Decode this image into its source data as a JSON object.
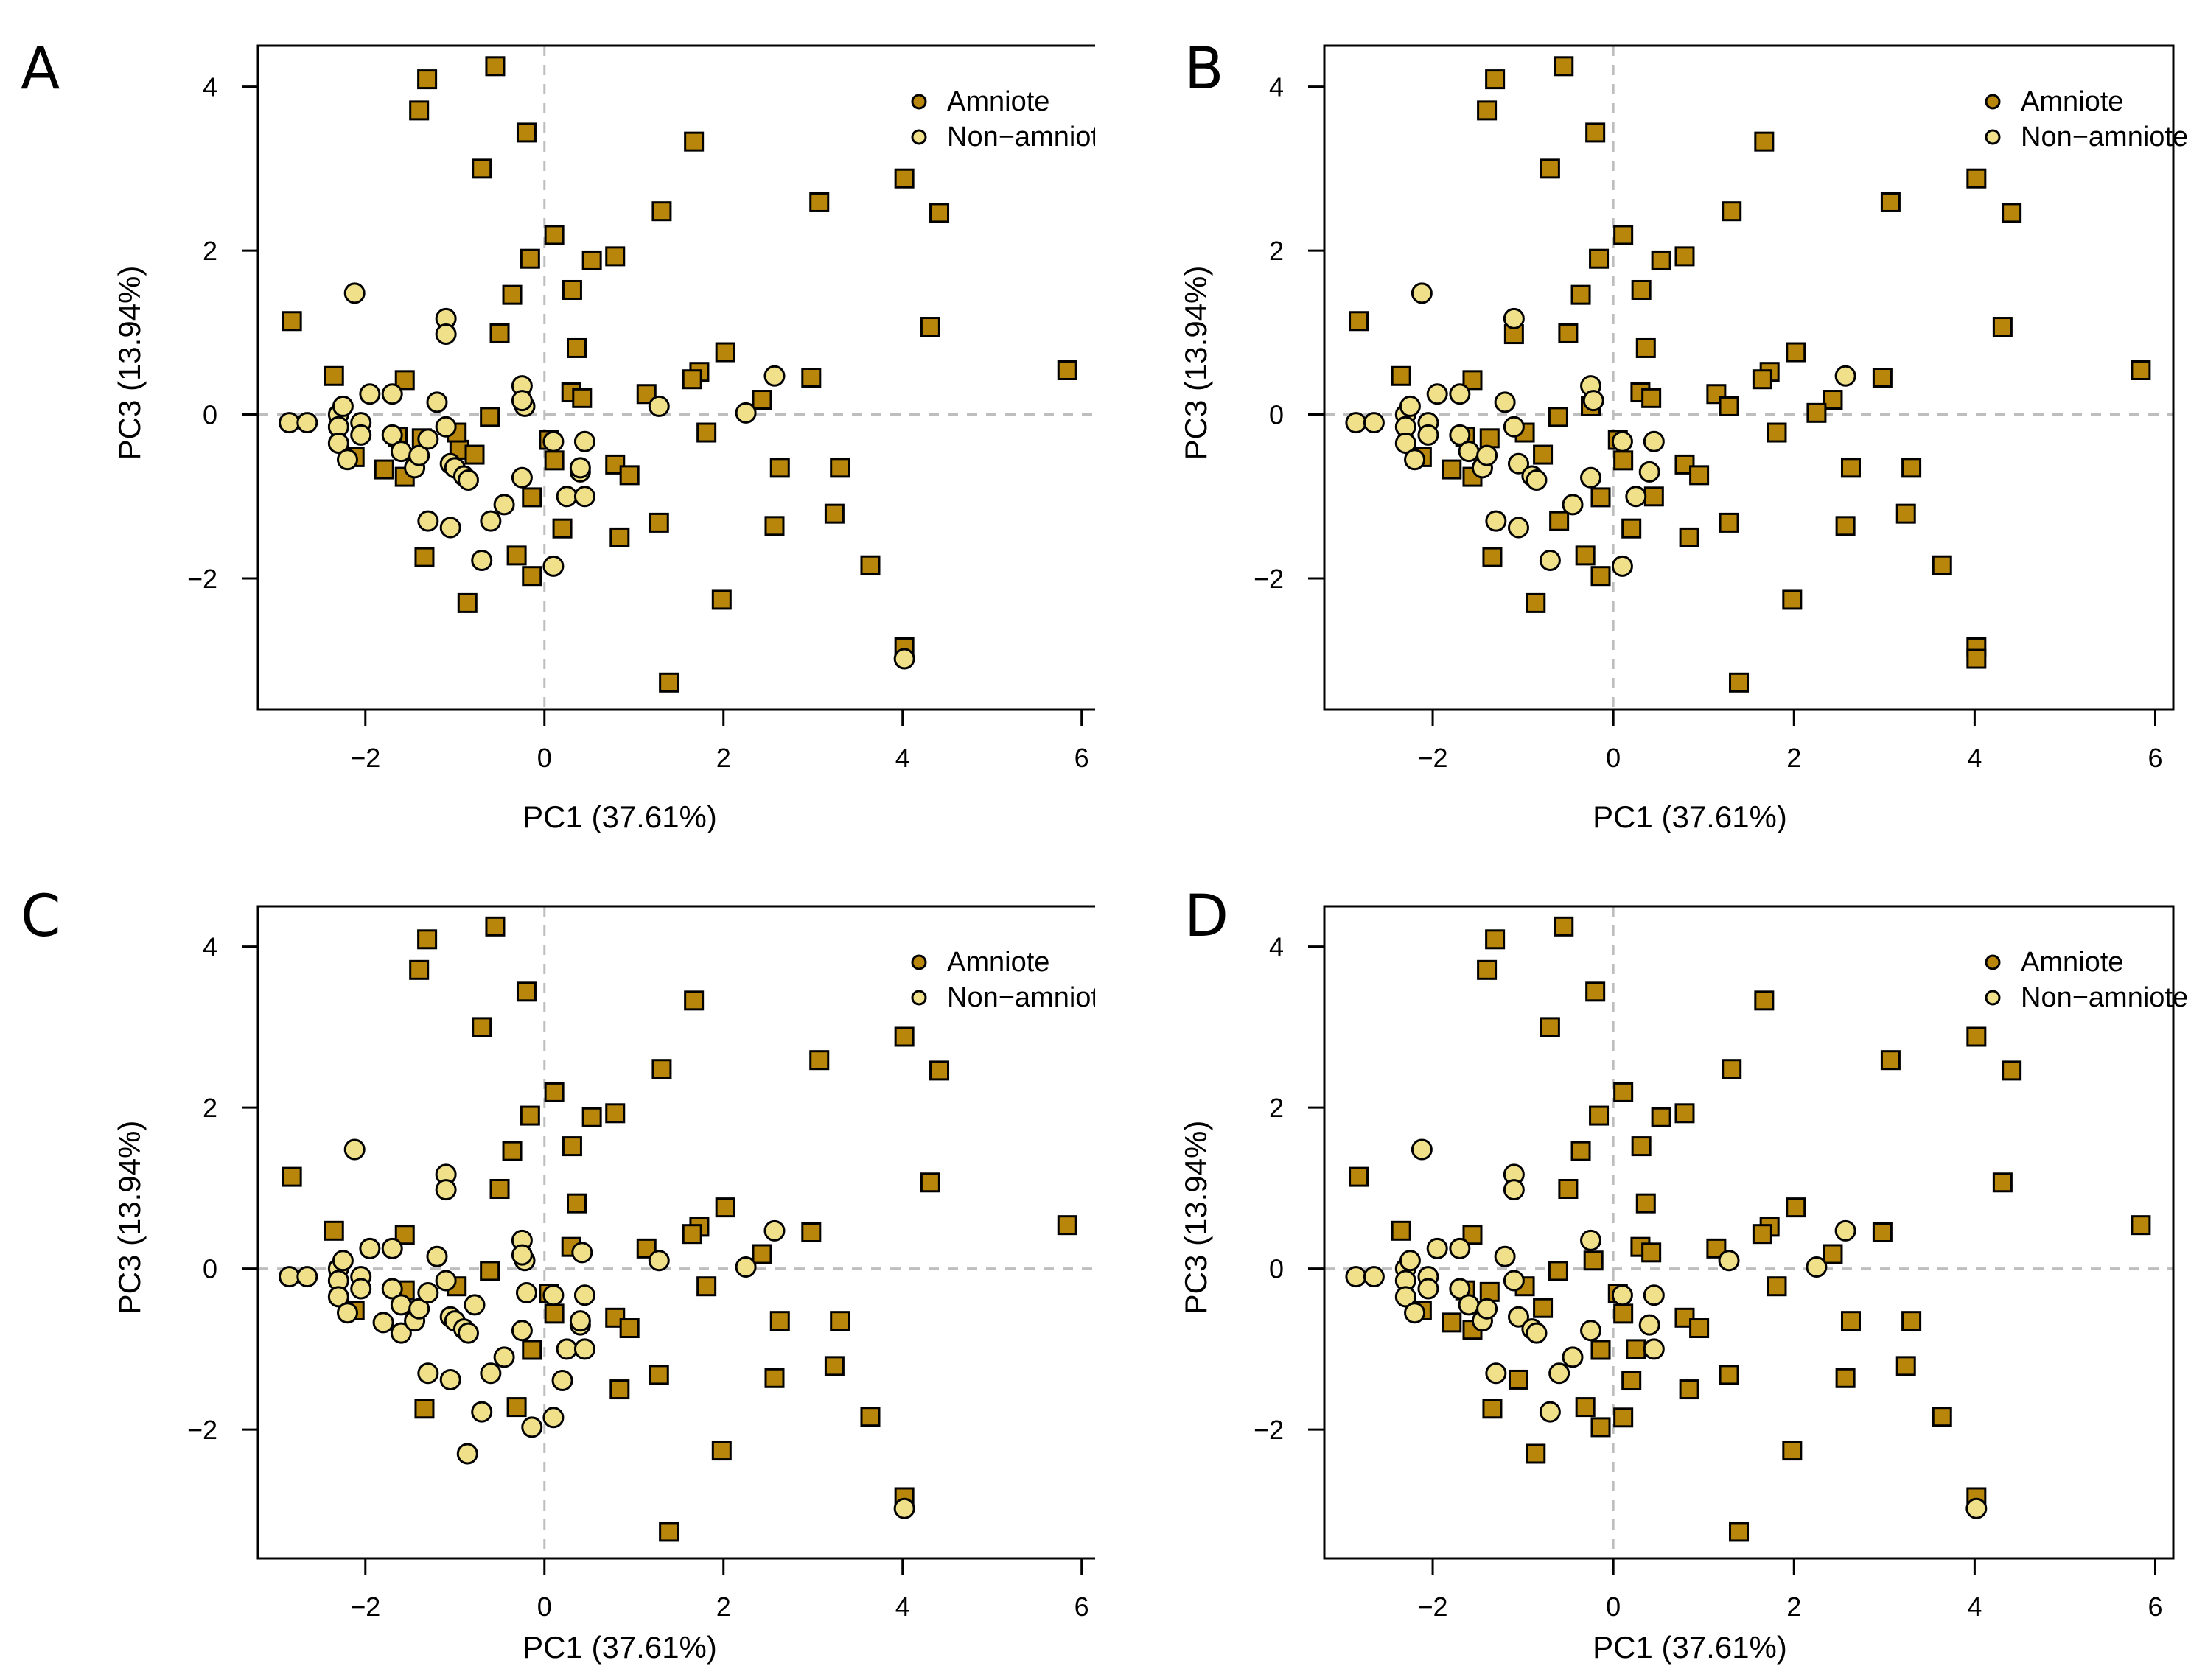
{
  "figure": {
    "colors": {
      "amniote": "#B8860B",
      "non_amniote": "#F0E08A",
      "outline": "#000000",
      "reference_line": "#BEBEBE"
    }
  },
  "chart_data": [
    {
      "panel": "A",
      "type": "scatter",
      "title": "",
      "xlabel": "PC1 (37.61%)",
      "ylabel": "PC3 (13.94%)",
      "xlim": [
        -3.2,
        6.2
      ],
      "ylim": [
        -3.6,
        4.5
      ],
      "xticks": [
        "-2",
        "0",
        "2",
        "4",
        "6"
      ],
      "yticks": [
        "-2",
        "0",
        "2",
        "4"
      ],
      "grid": false,
      "reference_lines": {
        "x": 0,
        "y": 0
      },
      "legend": {
        "position": "top-right",
        "entries": [
          "Amniote",
          "Non−amniote"
        ]
      },
      "series": [
        {
          "name": "Amniote",
          "marker": "square",
          "points": "A_amniote"
        },
        {
          "name": "Non−amniote",
          "marker": "circle",
          "points": "A_non"
        }
      ]
    },
    {
      "panel": "B",
      "type": "scatter",
      "title": "",
      "xlabel": "PC1 (37.61%)",
      "ylabel": "PC3 (13.94%)",
      "xlim": [
        -3.2,
        6.2
      ],
      "ylim": [
        -3.6,
        4.5
      ],
      "xticks": [
        "-2",
        "0",
        "2",
        "4",
        "6"
      ],
      "yticks": [
        "-2",
        "0",
        "2",
        "4"
      ],
      "grid": false,
      "reference_lines": {
        "x": 0,
        "y": 0
      },
      "legend": {
        "position": "top-right",
        "entries": [
          "Amniote",
          "Non−amniote"
        ]
      },
      "series": [
        {
          "name": "Amniote",
          "marker": "square",
          "points": "B_amniote"
        },
        {
          "name": "Non−amniote",
          "marker": "circle",
          "points": "B_non"
        }
      ]
    },
    {
      "panel": "C",
      "type": "scatter",
      "title": "",
      "xlabel": "PC1 (37.61%)",
      "ylabel": "PC3 (13.94%)",
      "xlim": [
        -3.2,
        6.2
      ],
      "ylim": [
        -3.6,
        4.5
      ],
      "xticks": [
        "-2",
        "0",
        "2",
        "4",
        "6"
      ],
      "yticks": [
        "-2",
        "0",
        "2",
        "4"
      ],
      "grid": false,
      "reference_lines": {
        "x": 0,
        "y": 0
      },
      "legend": {
        "position": "top-right",
        "entries": [
          "Amniote",
          "Non−amniote"
        ]
      },
      "series": [
        {
          "name": "Amniote",
          "marker": "square",
          "points": "C_amniote"
        },
        {
          "name": "Non−amniote",
          "marker": "circle",
          "points": "C_non"
        }
      ]
    },
    {
      "panel": "D",
      "type": "scatter",
      "title": "",
      "xlabel": "PC1 (37.61%)",
      "ylabel": "PC3 (13.94%)",
      "xlim": [
        -3.2,
        6.2
      ],
      "ylim": [
        -3.6,
        4.5
      ],
      "xticks": [
        "-2",
        "0",
        "2",
        "4",
        "6"
      ],
      "yticks": [
        "-2",
        "0",
        "2",
        "4"
      ],
      "grid": false,
      "reference_lines": {
        "x": 0,
        "y": 0
      },
      "legend": {
        "position": "top-right",
        "entries": [
          "Amniote",
          "Non−amniote"
        ]
      },
      "series": [
        {
          "name": "Amniote",
          "marker": "square",
          "points": "D_amniote"
        },
        {
          "name": "Non−amniote",
          "marker": "circle",
          "points": "D_non"
        }
      ]
    }
  ],
  "points": {
    "common_amniote": [
      [
        -2.82,
        1.14
      ],
      [
        -1.31,
        4.09
      ],
      [
        -0.55,
        4.25
      ],
      [
        -1.4,
        3.71
      ],
      [
        -0.2,
        3.44
      ],
      [
        -0.7,
        3.0
      ],
      [
        1.67,
        3.33
      ],
      [
        1.31,
        2.48
      ],
      [
        0.11,
        2.19
      ],
      [
        -0.16,
        1.9
      ],
      [
        0.53,
        1.88
      ],
      [
        0.79,
        1.93
      ],
      [
        -0.36,
        1.46
      ],
      [
        0.31,
        1.52
      ],
      [
        -0.5,
        0.99
      ],
      [
        0.36,
        0.81
      ],
      [
        2.02,
        0.76
      ],
      [
        3.07,
        2.59
      ],
      [
        4.02,
        2.88
      ],
      [
        4.41,
        2.46
      ],
      [
        4.31,
        1.07
      ],
      [
        5.84,
        0.54
      ],
      [
        2.98,
        0.45
      ],
      [
        1.73,
        0.52
      ],
      [
        1.65,
        0.43
      ],
      [
        2.43,
        0.18
      ],
      [
        1.14,
        0.25
      ],
      [
        -0.61,
        -0.03
      ],
      [
        1.81,
        -0.22
      ],
      [
        2.63,
        -0.65
      ],
      [
        3.3,
        -0.65
      ],
      [
        1.28,
        -1.32
      ],
      [
        2.57,
        -1.36
      ],
      [
        3.24,
        -1.21
      ],
      [
        0.84,
        -1.5
      ],
      [
        3.64,
        -1.84
      ],
      [
        -1.34,
        -1.74
      ],
      [
        -0.31,
        -1.72
      ],
      [
        1.98,
        -2.26
      ],
      [
        4.02,
        -2.84
      ],
      [
        1.39,
        -3.27
      ],
      [
        -2.35,
        0.47
      ],
      [
        -1.56,
        0.42
      ],
      [
        0.79,
        -0.61
      ],
      [
        0.95,
        -0.74
      ]
    ],
    "A_extra_amniote": [
      [
        0.3,
        0.27
      ],
      [
        0.42,
        0.2
      ],
      [
        0.05,
        -0.31
      ],
      [
        0.11,
        -0.56
      ],
      [
        -0.14,
        -1.01
      ],
      [
        0.2,
        -1.39
      ],
      [
        -0.14,
        -1.97
      ],
      [
        -0.86,
        -2.3
      ],
      [
        -1.64,
        -0.27
      ],
      [
        -1.37,
        -0.29
      ],
      [
        -0.95,
        -0.43
      ],
      [
        -0.78,
        -0.49
      ],
      [
        -1.79,
        -0.67
      ],
      [
        -1.56,
        -0.76
      ],
      [
        -2.12,
        -0.52
      ],
      [
        -0.98,
        -0.22
      ]
    ],
    "A_non": [
      [
        -2.85,
        -0.1
      ],
      [
        -2.65,
        -0.1
      ],
      [
        -2.3,
        0.0
      ],
      [
        -2.25,
        0.1
      ],
      [
        -2.3,
        -0.15
      ],
      [
        -2.3,
        -0.35
      ],
      [
        -2.2,
        -0.55
      ],
      [
        -2.05,
        -0.1
      ],
      [
        -2.05,
        -0.25
      ],
      [
        -1.95,
        0.25
      ],
      [
        -1.7,
        0.25
      ],
      [
        -1.7,
        -0.25
      ],
      [
        -1.6,
        -0.45
      ],
      [
        -1.45,
        -0.65
      ],
      [
        -1.4,
        -0.5
      ],
      [
        -1.3,
        -0.3
      ],
      [
        -1.2,
        0.15
      ],
      [
        -1.1,
        -0.15
      ],
      [
        -1.05,
        -0.6
      ],
      [
        -1.0,
        -0.65
      ],
      [
        -0.9,
        -0.75
      ],
      [
        -0.85,
        -0.8
      ],
      [
        -1.1,
        1.17
      ],
      [
        -1.1,
        0.98
      ],
      [
        -2.12,
        1.48
      ],
      [
        -0.25,
        0.35
      ],
      [
        -0.22,
        0.1
      ],
      [
        -0.25,
        0.17
      ],
      [
        -0.25,
        -0.77
      ],
      [
        -0.45,
        -1.1
      ],
      [
        -0.6,
        -1.3
      ],
      [
        -1.3,
        -1.3
      ],
      [
        -1.05,
        -1.38
      ],
      [
        -0.7,
        -1.78
      ],
      [
        0.1,
        -1.85
      ],
      [
        0.1,
        -0.33
      ],
      [
        0.45,
        -0.33
      ],
      [
        0.25,
        -1.0
      ],
      [
        0.45,
        -1.0
      ],
      [
        0.4,
        -0.7
      ],
      [
        0.4,
        -0.65
      ],
      [
        1.28,
        0.1
      ],
      [
        2.25,
        0.02
      ],
      [
        2.57,
        0.47
      ],
      [
        4.02,
        -2.98
      ]
    ],
    "B_amniote_extra": [
      [
        1.28,
        0.1
      ],
      [
        2.25,
        0.02
      ],
      [
        -0.25,
        0.1
      ],
      [
        0.3,
        0.27
      ],
      [
        0.42,
        0.2
      ],
      [
        0.05,
        -0.31
      ],
      [
        0.11,
        -0.56
      ],
      [
        -0.14,
        -1.01
      ],
      [
        0.2,
        -1.39
      ],
      [
        -0.14,
        -1.97
      ],
      [
        -0.86,
        -2.3
      ],
      [
        -1.64,
        -0.27
      ],
      [
        -1.37,
        -0.29
      ],
      [
        -0.98,
        -0.22
      ],
      [
        -1.79,
        -0.67
      ],
      [
        -1.56,
        -0.76
      ],
      [
        -2.12,
        -0.52
      ],
      [
        -0.78,
        -0.49
      ],
      [
        -0.6,
        -1.3
      ],
      [
        -1.1,
        0.98
      ],
      [
        4.02,
        -2.98
      ],
      [
        0.45,
        -1.0
      ]
    ],
    "B_non": [
      [
        -2.85,
        -0.1
      ],
      [
        -2.65,
        -0.1
      ],
      [
        -2.3,
        0.0
      ],
      [
        -2.25,
        0.1
      ],
      [
        -2.3,
        -0.15
      ],
      [
        -2.3,
        -0.35
      ],
      [
        -2.2,
        -0.55
      ],
      [
        -2.05,
        -0.1
      ],
      [
        -2.05,
        -0.25
      ],
      [
        -1.95,
        0.25
      ],
      [
        -1.7,
        0.25
      ],
      [
        -1.7,
        -0.25
      ],
      [
        -1.6,
        -0.45
      ],
      [
        -1.45,
        -0.65
      ],
      [
        -1.4,
        -0.5
      ],
      [
        -1.2,
        0.15
      ],
      [
        -1.1,
        -0.15
      ],
      [
        -1.05,
        -0.6
      ],
      [
        -0.9,
        -0.75
      ],
      [
        -0.85,
        -0.8
      ],
      [
        -1.1,
        1.17
      ],
      [
        -2.12,
        1.48
      ],
      [
        -0.25,
        0.35
      ],
      [
        -0.22,
        0.17
      ],
      [
        -0.25,
        -0.77
      ],
      [
        -0.45,
        -1.1
      ],
      [
        -1.3,
        -1.3
      ],
      [
        -1.05,
        -1.38
      ],
      [
        -0.7,
        -1.78
      ],
      [
        0.1,
        -1.85
      ],
      [
        0.1,
        -0.33
      ],
      [
        0.45,
        -0.33
      ],
      [
        0.25,
        -1.0
      ],
      [
        0.4,
        -0.7
      ],
      [
        2.57,
        0.47
      ]
    ],
    "C_amniote_extra": [
      [
        0.3,
        0.27
      ],
      [
        0.05,
        -0.31
      ],
      [
        0.11,
        -0.56
      ],
      [
        -0.14,
        -1.01
      ],
      [
        -1.56,
        -0.27
      ],
      [
        -0.98,
        -0.22
      ],
      [
        -2.12,
        -0.52
      ]
    ],
    "C_non": [
      [
        -2.85,
        -0.1
      ],
      [
        -2.65,
        -0.1
      ],
      [
        -2.3,
        0.0
      ],
      [
        -2.25,
        0.1
      ],
      [
        -2.3,
        -0.15
      ],
      [
        -2.3,
        -0.35
      ],
      [
        -2.2,
        -0.55
      ],
      [
        -2.05,
        -0.1
      ],
      [
        -2.05,
        -0.25
      ],
      [
        -1.95,
        0.25
      ],
      [
        -1.7,
        0.25
      ],
      [
        -1.7,
        -0.25
      ],
      [
        -1.6,
        -0.45
      ],
      [
        -1.6,
        -0.8
      ],
      [
        -1.45,
        -0.65
      ],
      [
        -1.4,
        -0.5
      ],
      [
        -1.3,
        -0.3
      ],
      [
        -1.2,
        0.15
      ],
      [
        -1.1,
        -0.15
      ],
      [
        -1.05,
        -0.6
      ],
      [
        -1.0,
        -0.65
      ],
      [
        -0.9,
        -0.75
      ],
      [
        -0.85,
        -0.8
      ],
      [
        -0.78,
        -0.45
      ],
      [
        -1.8,
        -0.67
      ],
      [
        -1.1,
        1.17
      ],
      [
        -1.1,
        0.98
      ],
      [
        -2.12,
        1.48
      ],
      [
        -0.25,
        0.35
      ],
      [
        -0.22,
        0.1
      ],
      [
        -0.25,
        0.17
      ],
      [
        -0.25,
        -0.77
      ],
      [
        -0.45,
        -1.1
      ],
      [
        -0.6,
        -1.3
      ],
      [
        -1.3,
        -1.3
      ],
      [
        -1.05,
        -1.38
      ],
      [
        -0.7,
        -1.78
      ],
      [
        0.1,
        -1.85
      ],
      [
        -0.14,
        -1.97
      ],
      [
        -0.86,
        -2.3
      ],
      [
        0.1,
        -0.33
      ],
      [
        0.45,
        -0.33
      ],
      [
        0.25,
        -1.0
      ],
      [
        0.45,
        -1.0
      ],
      [
        0.4,
        -0.7
      ],
      [
        0.4,
        -0.65
      ],
      [
        0.2,
        -1.39
      ],
      [
        0.42,
        0.2
      ],
      [
        -0.2,
        -0.3
      ],
      [
        1.28,
        0.1
      ],
      [
        2.25,
        0.02
      ],
      [
        2.57,
        0.47
      ],
      [
        4.02,
        -2.98
      ]
    ],
    "D_amniote_extra": [
      [
        0.3,
        0.27
      ],
      [
        0.42,
        0.2
      ],
      [
        -0.22,
        0.1
      ],
      [
        0.05,
        -0.31
      ],
      [
        0.11,
        -0.56
      ],
      [
        -0.14,
        -1.01
      ],
      [
        0.2,
        -1.39
      ],
      [
        0.11,
        -1.85
      ],
      [
        -0.14,
        -1.97
      ],
      [
        -0.86,
        -2.3
      ],
      [
        -1.05,
        -1.38
      ],
      [
        -1.64,
        -0.27
      ],
      [
        -1.37,
        -0.29
      ],
      [
        -0.98,
        -0.22
      ],
      [
        -1.79,
        -0.67
      ],
      [
        -1.56,
        -0.76
      ],
      [
        -2.12,
        -0.52
      ],
      [
        -0.78,
        -0.49
      ],
      [
        0.25,
        -1.0
      ]
    ],
    "D_non": [
      [
        -2.85,
        -0.1
      ],
      [
        -2.65,
        -0.1
      ],
      [
        -2.3,
        0.0
      ],
      [
        -2.25,
        0.1
      ],
      [
        -2.3,
        -0.15
      ],
      [
        -2.3,
        -0.35
      ],
      [
        -2.2,
        -0.55
      ],
      [
        -2.05,
        -0.1
      ],
      [
        -2.05,
        -0.25
      ],
      [
        -1.95,
        0.25
      ],
      [
        -1.7,
        0.25
      ],
      [
        -1.7,
        -0.25
      ],
      [
        -1.6,
        -0.45
      ],
      [
        -1.45,
        -0.65
      ],
      [
        -1.4,
        -0.5
      ],
      [
        -1.2,
        0.15
      ],
      [
        -1.1,
        -0.15
      ],
      [
        -1.05,
        -0.6
      ],
      [
        -0.9,
        -0.75
      ],
      [
        -0.85,
        -0.8
      ],
      [
        -1.1,
        1.17
      ],
      [
        -1.1,
        0.98
      ],
      [
        -2.12,
        1.48
      ],
      [
        -0.25,
        0.35
      ],
      [
        -0.25,
        -0.77
      ],
      [
        -0.45,
        -1.1
      ],
      [
        -0.6,
        -1.3
      ],
      [
        -1.3,
        -1.3
      ],
      [
        -0.7,
        -1.78
      ],
      [
        0.1,
        -0.33
      ],
      [
        0.45,
        -0.33
      ],
      [
        0.4,
        -0.7
      ],
      [
        0.45,
        -1.0
      ],
      [
        1.28,
        0.1
      ],
      [
        2.25,
        0.02
      ],
      [
        2.57,
        0.47
      ],
      [
        4.02,
        -2.98
      ]
    ]
  },
  "panels": [
    {
      "letter": "A"
    },
    {
      "letter": "B"
    },
    {
      "letter": "C"
    },
    {
      "letter": "D"
    }
  ]
}
